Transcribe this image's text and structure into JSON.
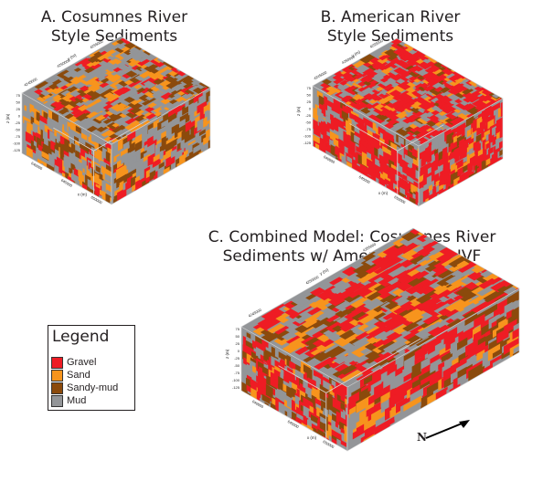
{
  "titles": {
    "a": "A. Cosumnes River\nStyle Sediments",
    "b": "B. American River\nStyle Sediments",
    "c": "C. Combined Model: Cosumnes River\nSediments w/ American River IVF"
  },
  "legend": {
    "title": "Legend",
    "items": [
      {
        "label": "Gravel",
        "color": "#ee1c24"
      },
      {
        "label": "Sand",
        "color": "#f7941d"
      },
      {
        "label": "Sandy-mud",
        "color": "#8b4a0c"
      },
      {
        "label": "Mud",
        "color": "#939598"
      }
    ]
  },
  "north_label": "N",
  "axis_labels": {
    "x": "x (m)",
    "y": "y (m)",
    "z": "z (m)"
  },
  "tick_labels": {
    "z": [
      "75",
      "50",
      "25",
      "0",
      "-25",
      "-50",
      "-75",
      "-100",
      "-125"
    ],
    "x": [
      "640000",
      "645000",
      "650000"
    ],
    "y": [
      "4245000",
      "4250000",
      "4255000"
    ]
  },
  "blocks": [
    {
      "id": "a",
      "mix": {
        "Mud": 0.58,
        "Sand": 0.17,
        "Sandy-mud": 0.16,
        "Gravel": 0.09
      }
    },
    {
      "id": "b",
      "mix": {
        "Mud": 0.35,
        "Sand": 0.12,
        "Sandy-mud": 0.08,
        "Gravel": 0.45
      }
    },
    {
      "id": "c",
      "mix": {
        "Mud": 0.42,
        "Sand": 0.12,
        "Sandy-mud": 0.16,
        "Gravel": 0.3
      }
    }
  ]
}
